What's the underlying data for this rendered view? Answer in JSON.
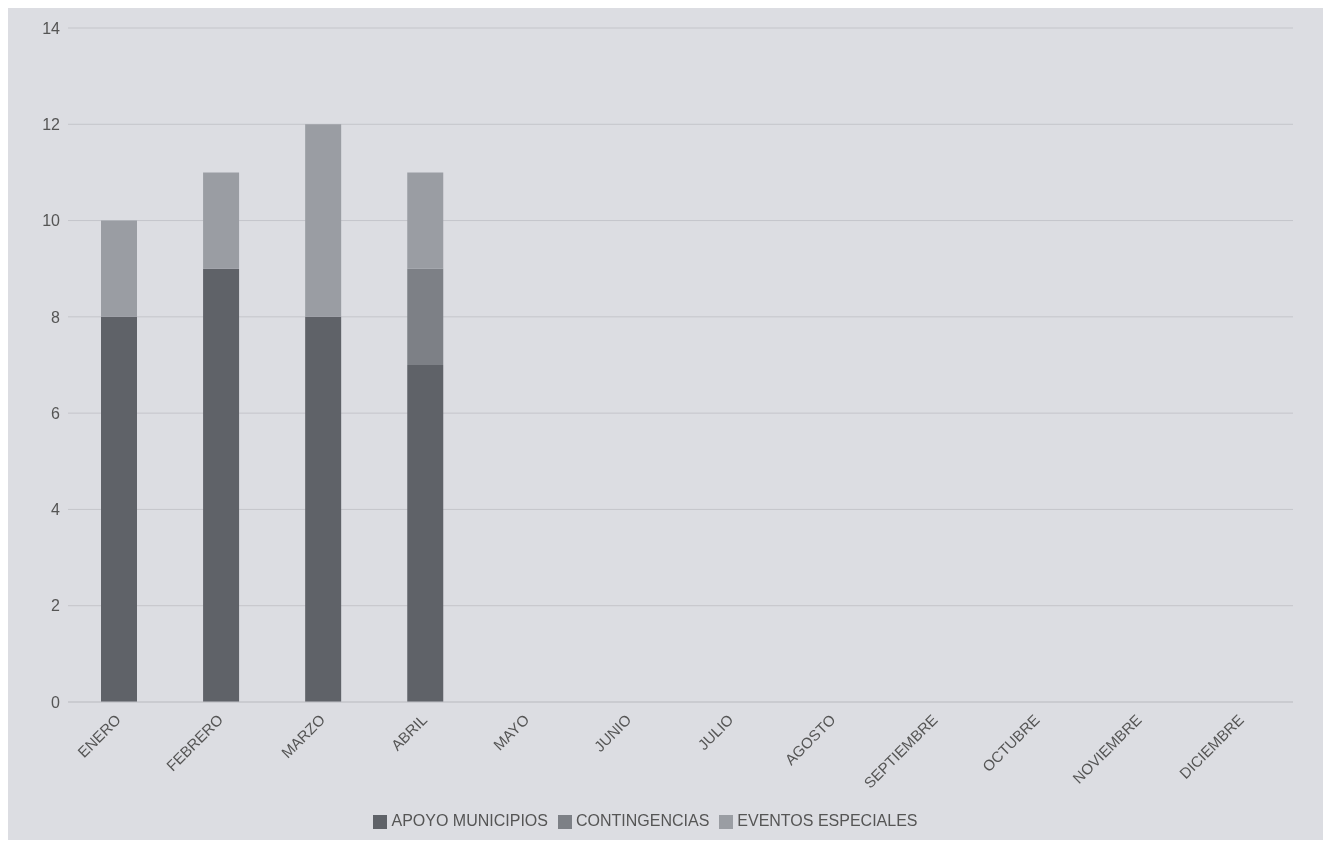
{
  "chart_data": {
    "type": "bar",
    "stacked": true,
    "categories": [
      "ENERO",
      "FEBRERO",
      "MARZO",
      "ABRIL",
      "MAYO",
      "JUNIO",
      "JULIO",
      "AGOSTO",
      "SEPTIEMBRE",
      "OCTUBRE",
      "NOVIEMBRE",
      "DICIEMBRE"
    ],
    "series": [
      {
        "name": "APOYO MUNICIPIOS",
        "color": "#5f6268",
        "values": [
          8,
          9,
          8,
          7,
          null,
          null,
          null,
          null,
          null,
          null,
          null,
          null
        ]
      },
      {
        "name": "CONTINGENCIAS",
        "color": "#7d8086",
        "values": [
          0,
          0,
          0,
          2,
          null,
          null,
          null,
          null,
          null,
          null,
          null,
          null
        ]
      },
      {
        "name": "EVENTOS ESPECIALES",
        "color": "#9a9da3",
        "values": [
          2,
          2,
          4,
          2,
          null,
          null,
          null,
          null,
          null,
          null,
          null,
          null
        ]
      }
    ],
    "ylim": [
      0,
      14
    ],
    "yticks": [
      0,
      2,
      4,
      6,
      8,
      10,
      12,
      14
    ],
    "grid": "y",
    "legend": "bottom"
  }
}
